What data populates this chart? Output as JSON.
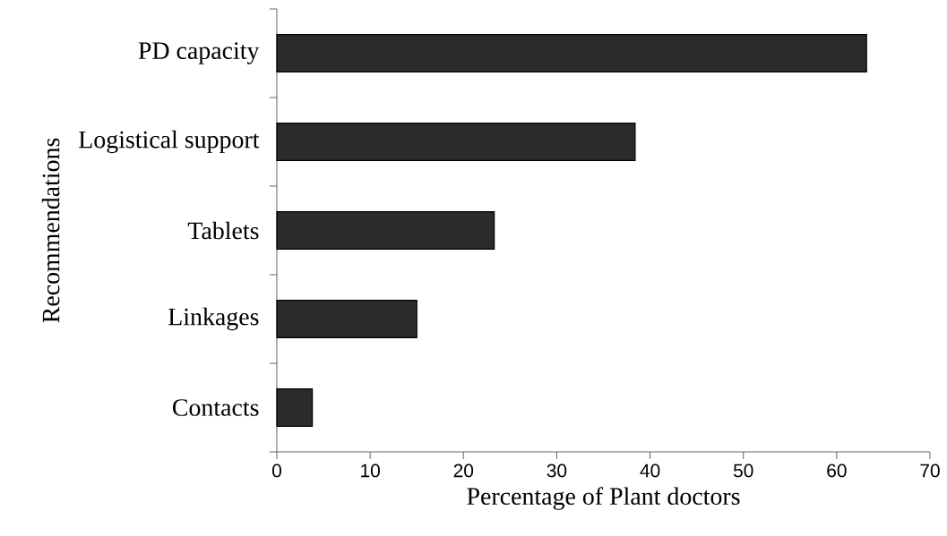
{
  "chart_data": {
    "type": "bar",
    "orientation": "horizontal",
    "xlabel": "Percentage of Plant doctors",
    "ylabel": "Recommendations",
    "categories": [
      "PD capacity",
      "Logistical support",
      "Tablets",
      "Linkages",
      "Contacts"
    ],
    "values": [
      63.2,
      38.4,
      23.3,
      15.0,
      3.8
    ],
    "color": "#2b2b2b",
    "xlim": [
      0,
      70
    ],
    "xticks": [
      0,
      10,
      20,
      30,
      40,
      50,
      60,
      70
    ],
    "grid": false
  }
}
